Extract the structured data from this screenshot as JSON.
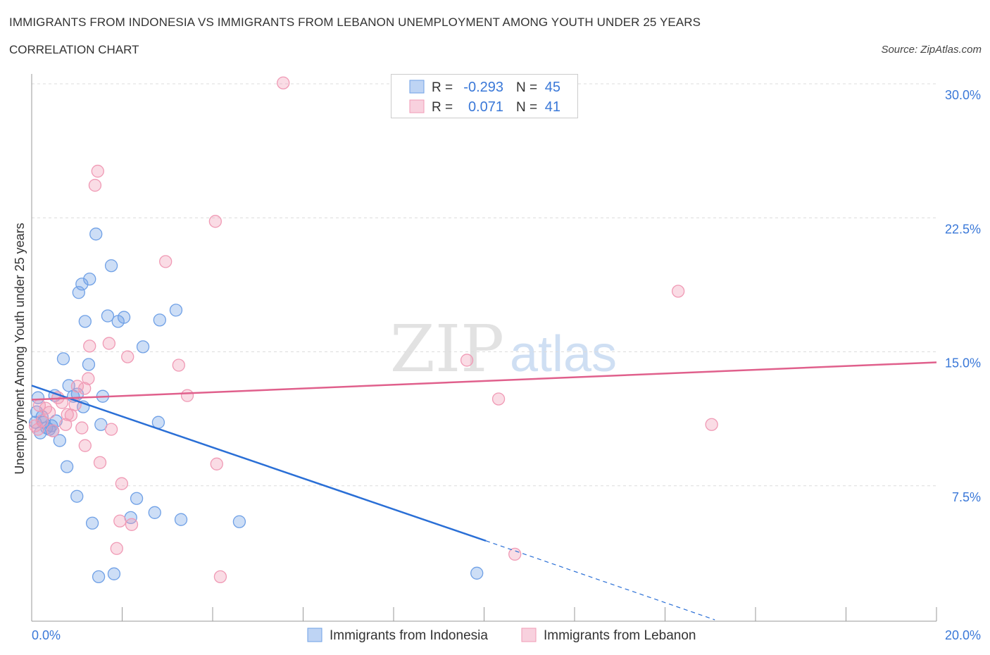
{
  "title": "IMMIGRANTS FROM INDONESIA VS IMMIGRANTS FROM LEBANON UNEMPLOYMENT AMONG YOUTH UNDER 25 YEARS",
  "subtitle": "CORRELATION CHART",
  "source": "Source: ZipAtlas.com",
  "watermark": {
    "zip": "ZIP",
    "atlas": "atlas"
  },
  "chart_data": {
    "type": "scatter",
    "title": "IMMIGRANTS FROM INDONESIA VS IMMIGRANTS FROM LEBANON UNEMPLOYMENT AMONG YOUTH UNDER 25 YEARS",
    "xlabel": "",
    "ylabel": "Unemployment Among Youth under 25 years",
    "xlim": [
      0,
      20
    ],
    "ylim": [
      0,
      30
    ],
    "x_tick_labels": [
      "0.0%",
      "20.0%"
    ],
    "y_ticks": [
      7.5,
      15.0,
      22.5,
      30.0
    ],
    "y_tick_labels": [
      "7.5%",
      "15.0%",
      "22.5%",
      "30.0%"
    ],
    "grid": true,
    "legend_position": "bottom-center",
    "stats": [
      {
        "r_label": "R =",
        "r": "-0.293",
        "n_label": "N =",
        "n": "45"
      },
      {
        "r_label": "R =",
        "r": "0.071",
        "n_label": "N =",
        "n": "41"
      }
    ],
    "series": [
      {
        "name": "Immigrants from Indonesia",
        "color": "#6fa0e6",
        "line_color": "#2a6fd6",
        "trend": {
          "x0": 0,
          "y0": 13.11,
          "x1": 10.04,
          "y1": 4.42,
          "dash_x1": 15.1,
          "dash_y1": 0
        },
        "points": [
          [
            1.42,
            21.59
          ],
          [
            1.76,
            19.82
          ],
          [
            1.28,
            19.07
          ],
          [
            1.11,
            18.79
          ],
          [
            1.04,
            18.32
          ],
          [
            3.19,
            17.33
          ],
          [
            1.68,
            17.01
          ],
          [
            2.04,
            16.93
          ],
          [
            1.91,
            16.7
          ],
          [
            1.18,
            16.7
          ],
          [
            2.83,
            16.78
          ],
          [
            2.46,
            15.28
          ],
          [
            0.7,
            14.61
          ],
          [
            1.26,
            14.29
          ],
          [
            0.82,
            13.11
          ],
          [
            0.51,
            12.55
          ],
          [
            0.92,
            12.51
          ],
          [
            1.57,
            12.51
          ],
          [
            1.14,
            11.92
          ],
          [
            0.14,
            12.43
          ],
          [
            0.11,
            11.64
          ],
          [
            0.54,
            11.13
          ],
          [
            0.26,
            11.05
          ],
          [
            0.44,
            10.86
          ],
          [
            1.53,
            10.93
          ],
          [
            2.8,
            11.05
          ],
          [
            0.19,
            10.46
          ],
          [
            0.62,
            10.03
          ],
          [
            0.78,
            8.57
          ],
          [
            1.0,
            6.91
          ],
          [
            2.32,
            6.79
          ],
          [
            2.19,
            5.72
          ],
          [
            2.72,
            6.0
          ],
          [
            1.34,
            5.41
          ],
          [
            3.3,
            5.61
          ],
          [
            4.59,
            5.49
          ],
          [
            1.48,
            2.41
          ],
          [
            1.82,
            2.57
          ],
          [
            9.84,
            2.61
          ],
          [
            0.33,
            10.74
          ],
          [
            0.23,
            11.37
          ],
          [
            0.39,
            10.66
          ],
          [
            1.01,
            12.63
          ],
          [
            0.08,
            11.05
          ],
          [
            0.47,
            10.58
          ]
        ]
      },
      {
        "name": "Immigrants from Lebanon",
        "color": "#f09ab5",
        "line_color": "#e0608c",
        "trend": {
          "x0": 0,
          "y0": 12.32,
          "x1": 20,
          "y1": 14.41
        },
        "points": [
          [
            5.56,
            30.05
          ],
          [
            1.46,
            25.11
          ],
          [
            1.4,
            24.32
          ],
          [
            4.06,
            22.3
          ],
          [
            2.96,
            20.05
          ],
          [
            14.29,
            18.39
          ],
          [
            1.71,
            15.47
          ],
          [
            1.28,
            15.32
          ],
          [
            2.12,
            14.72
          ],
          [
            3.25,
            14.25
          ],
          [
            9.62,
            14.53
          ],
          [
            1.25,
            13.5
          ],
          [
            1.01,
            13.07
          ],
          [
            3.44,
            12.55
          ],
          [
            10.32,
            12.36
          ],
          [
            0.67,
            12.16
          ],
          [
            0.17,
            12.0
          ],
          [
            0.87,
            11.45
          ],
          [
            0.39,
            11.61
          ],
          [
            0.75,
            10.93
          ],
          [
            1.11,
            10.74
          ],
          [
            1.76,
            10.66
          ],
          [
            15.03,
            10.93
          ],
          [
            1.18,
            9.75
          ],
          [
            1.51,
            8.8
          ],
          [
            4.09,
            8.72
          ],
          [
            1.99,
            7.62
          ],
          [
            1.95,
            5.53
          ],
          [
            2.21,
            5.33
          ],
          [
            1.88,
            3.99
          ],
          [
            10.68,
            3.67
          ],
          [
            4.17,
            2.41
          ],
          [
            0.58,
            12.43
          ],
          [
            0.23,
            11.13
          ],
          [
            0.08,
            10.86
          ],
          [
            0.47,
            10.58
          ],
          [
            0.96,
            12.04
          ],
          [
            0.79,
            11.49
          ],
          [
            0.31,
            11.84
          ],
          [
            0.14,
            10.66
          ],
          [
            1.17,
            12.95
          ]
        ]
      }
    ]
  }
}
